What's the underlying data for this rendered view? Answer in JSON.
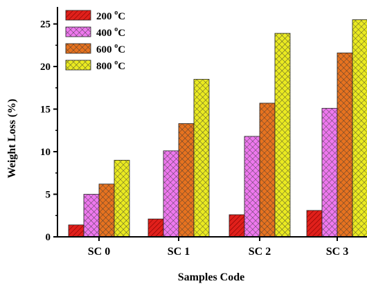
{
  "chart_data": {
    "type": "bar",
    "categories": [
      "SC 0",
      "SC 1",
      "SC 2",
      "SC 3"
    ],
    "series": [
      {
        "name": "200 °C",
        "values": [
          1.4,
          2.1,
          2.6,
          3.1
        ],
        "color": "#e0201b",
        "pattern": "diagonal-hatch"
      },
      {
        "name": "400 °C",
        "values": [
          5.0,
          10.1,
          11.8,
          15.1
        ],
        "color": "#ee78ee",
        "pattern": "crosshatch"
      },
      {
        "name": "600 °C",
        "values": [
          6.2,
          13.3,
          15.7,
          21.6
        ],
        "color": "#e6721f",
        "pattern": "crosshatch"
      },
      {
        "name": "800 °C",
        "values": [
          9.0,
          18.5,
          23.9,
          25.5
        ],
        "color": "#eaea20",
        "pattern": "crosshatch"
      }
    ],
    "xlabel": "Samples Code",
    "ylabel": "Weight Loss (%)",
    "ylim": [
      0,
      27
    ],
    "yticks": [
      0,
      5,
      10,
      15,
      20,
      25
    ],
    "legend_position": "top-left",
    "legend_units": {
      "base": [
        "200",
        "400",
        "600",
        "800"
      ],
      "sup": "o",
      "unit": "C"
    }
  }
}
